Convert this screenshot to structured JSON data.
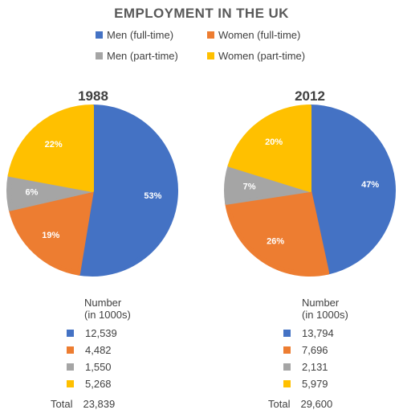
{
  "title": "EMPLOYMENT IN THE UK",
  "legend": [
    {
      "label": "Men (full-time)",
      "color": "#4472C4"
    },
    {
      "label": "Women (full-time)",
      "color": "#ED7D31"
    },
    {
      "label": "Men (part-time)",
      "color": "#A5A5A5"
    },
    {
      "label": "Women (part-time)",
      "color": "#FFC000"
    }
  ],
  "table_header_line1": "Number",
  "table_header_line2": "(in 1000s)",
  "total_label": "Total",
  "chart_data": [
    {
      "type": "pie",
      "title": "1988",
      "categories": [
        "Men (full-time)",
        "Women (full-time)",
        "Men (part-time)",
        "Women (part-time)"
      ],
      "values": [
        12539,
        4482,
        1550,
        5268
      ],
      "value_labels": [
        "12,539",
        "4,482",
        "1,550",
        "5,268"
      ],
      "percent_labels": [
        "53%",
        "19%",
        "6%",
        "22%"
      ],
      "total": "23,839"
    },
    {
      "type": "pie",
      "title": "2012",
      "categories": [
        "Men (full-time)",
        "Women (full-time)",
        "Men (part-time)",
        "Women (part-time)"
      ],
      "values": [
        13794,
        7696,
        2131,
        5979
      ],
      "value_labels": [
        "13,794",
        "7,696",
        "2,131",
        "5,979"
      ],
      "percent_labels": [
        "47%",
        "26%",
        "7%",
        "20%"
      ],
      "total": "29,600"
    }
  ]
}
